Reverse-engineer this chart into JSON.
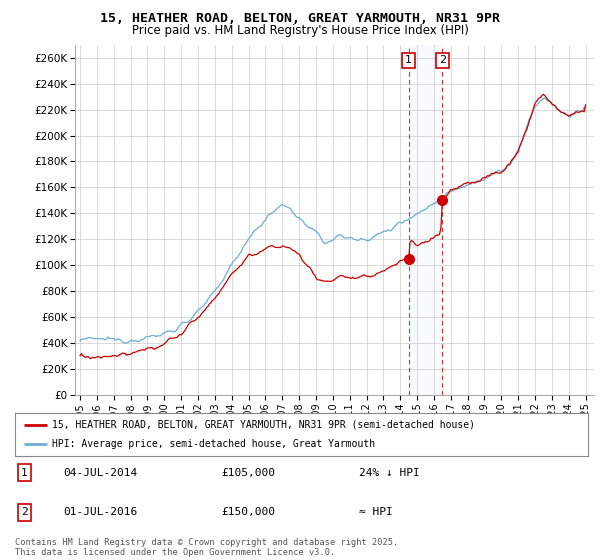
{
  "title1": "15, HEATHER ROAD, BELTON, GREAT YARMOUTH, NR31 9PR",
  "title2": "Price paid vs. HM Land Registry's House Price Index (HPI)",
  "ylabel_ticks": [
    "£0",
    "£20K",
    "£40K",
    "£60K",
    "£80K",
    "£100K",
    "£120K",
    "£140K",
    "£160K",
    "£180K",
    "£200K",
    "£220K",
    "£240K",
    "£260K"
  ],
  "ytick_values": [
    0,
    20000,
    40000,
    60000,
    80000,
    100000,
    120000,
    140000,
    160000,
    180000,
    200000,
    220000,
    240000,
    260000
  ],
  "hpi_color": "#6baed6",
  "price_color": "#cc0000",
  "marker1_year": 2014.5,
  "marker1_price": 105000,
  "marker2_year": 2016.5,
  "marker2_price": 150000,
  "legend_label1": "15, HEATHER ROAD, BELTON, GREAT YARMOUTH, NR31 9PR (semi-detached house)",
  "legend_label2": "HPI: Average price, semi-detached house, Great Yarmouth",
  "note1_num": "1",
  "note1_date": "04-JUL-2014",
  "note1_price": "£105,000",
  "note1_hpi": "24% ↓ HPI",
  "note2_num": "2",
  "note2_date": "01-JUL-2016",
  "note2_price": "£150,000",
  "note2_hpi": "≈ HPI",
  "footer": "Contains HM Land Registry data © Crown copyright and database right 2025.\nThis data is licensed under the Open Government Licence v3.0.",
  "xmin": 1994.7,
  "xmax": 2025.5,
  "ymin": 0,
  "ymax": 270000
}
